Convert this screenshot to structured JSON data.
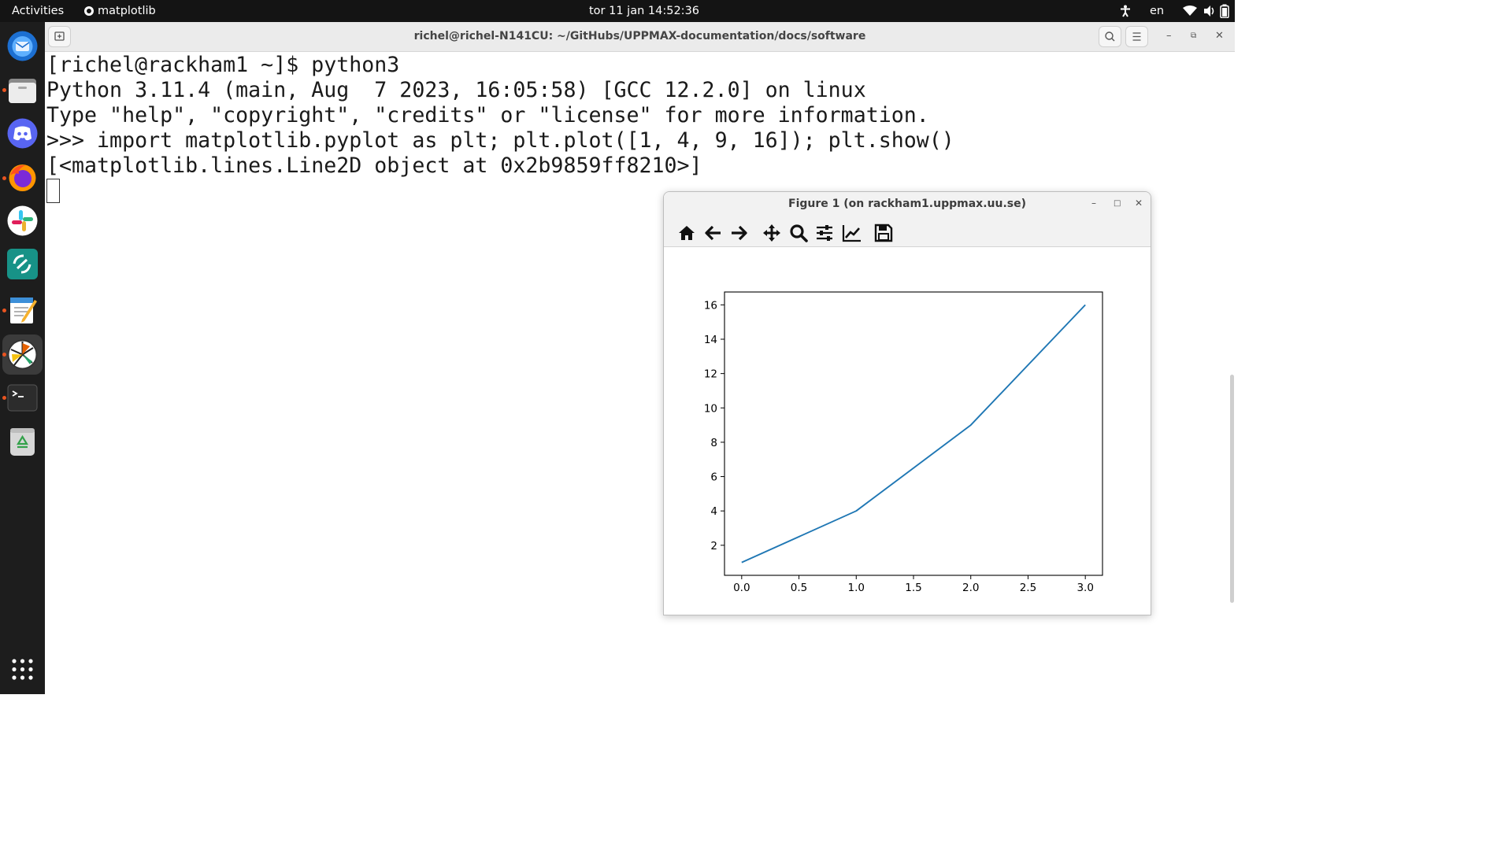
{
  "topbar": {
    "activities": "Activities",
    "app_name": "matplotlib",
    "clock": "tor 11 jan  14:52:36",
    "language": "en",
    "icons": [
      "accessibility-icon",
      "wifi-icon",
      "volume-icon",
      "battery-icon"
    ]
  },
  "dock": {
    "items": [
      {
        "name": "thunderbird",
        "color": "#2f7fd8"
      },
      {
        "name": "files",
        "color": "#e8e8e8"
      },
      {
        "name": "discord",
        "color": "#5865f2"
      },
      {
        "name": "firefox",
        "color": "#ff7139"
      },
      {
        "name": "slack",
        "color": "#ffffff"
      },
      {
        "name": "gitkraken",
        "color": "#179287"
      },
      {
        "name": "text-editor",
        "color": "#f6d32d"
      },
      {
        "name": "shutter",
        "color": "#ffffff"
      },
      {
        "name": "terminal",
        "color": "#2e2e2e"
      },
      {
        "name": "trash",
        "color": "#dcdcdc"
      }
    ],
    "show_apps_icon": "grid-icon"
  },
  "terminal": {
    "title": "richel@richel-N141CU: ~/GitHubs/UPPMAX-documentation/docs/software",
    "lines": [
      "[richel@rackham1 ~]$ python3",
      "Python 3.11.4 (main, Aug  7 2023, 16:05:58) [GCC 12.2.0] on linux",
      "Type \"help\", \"copyright\", \"credits\" or \"license\" for more information.",
      ">>> import matplotlib.pyplot as plt; plt.plot([1, 4, 9, 16]); plt.show()",
      "[<matplotlib.lines.Line2D object at 0x2b9859ff8210>]"
    ]
  },
  "figure_window": {
    "title": "Figure 1 (on rackham1.uppmax.uu.se)",
    "toolbar": [
      "home-icon",
      "back-icon",
      "forward-icon",
      "pan-icon",
      "zoom-icon",
      "configure-subplots-icon",
      "edit-axis-icon",
      "save-icon"
    ]
  },
  "chart_data": {
    "type": "line",
    "x": [
      0,
      1,
      2,
      3
    ],
    "series": [
      {
        "values": [
          1,
          4,
          9,
          16
        ],
        "color": "#1f77b4"
      }
    ],
    "xlim": [
      -0.15,
      3.15
    ],
    "ylim": [
      0.25,
      16.75
    ],
    "xticks": [
      0.0,
      0.5,
      1.0,
      1.5,
      2.0,
      2.5,
      3.0
    ],
    "xtick_labels": [
      "0.0",
      "0.5",
      "1.0",
      "1.5",
      "2.0",
      "2.5",
      "3.0"
    ],
    "yticks": [
      2,
      4,
      6,
      8,
      10,
      12,
      14,
      16
    ],
    "ytick_labels": [
      "2",
      "4",
      "6",
      "8",
      "10",
      "12",
      "14",
      "16"
    ],
    "grid": false,
    "title": "",
    "xlabel": "",
    "ylabel": ""
  }
}
